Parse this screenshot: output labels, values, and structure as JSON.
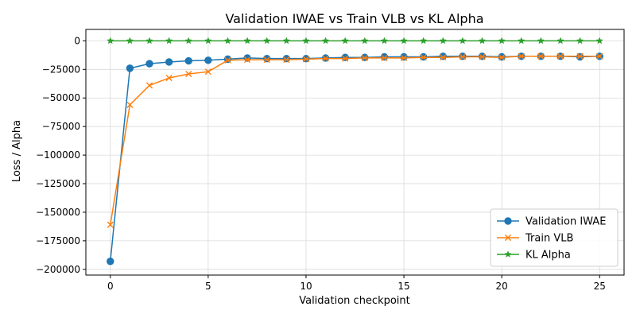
{
  "chart_data": {
    "type": "line",
    "title": "Validation IWAE vs Train VLB vs KL Alpha",
    "xlabel": "Validation checkpoint",
    "ylabel": "Loss / Alpha",
    "xlim": [
      -1.25,
      26.25
    ],
    "ylim": [
      -205000,
      10000
    ],
    "xticks": [
      0,
      5,
      10,
      15,
      20,
      25
    ],
    "yticks": [
      0,
      -25000,
      -50000,
      -75000,
      -100000,
      -125000,
      -150000,
      -175000,
      -200000
    ],
    "ytick_labels": [
      "0",
      "−25000",
      "−50000",
      "−75000",
      "−100000",
      "−125000",
      "−150000",
      "−175000",
      "−200000"
    ],
    "grid": true,
    "legend_position": "lower-right",
    "x": [
      0,
      1,
      2,
      3,
      4,
      5,
      6,
      7,
      8,
      9,
      10,
      11,
      12,
      13,
      14,
      15,
      16,
      17,
      18,
      19,
      20,
      21,
      22,
      23,
      24,
      25
    ],
    "series": [
      {
        "name": "Validation IWAE",
        "color": "#1f77b4",
        "marker": "circle",
        "values": [
          -193000,
          -24000,
          -20000,
          -18500,
          -17500,
          -17000,
          -16000,
          -15000,
          -15500,
          -15500,
          -15500,
          -15000,
          -14500,
          -14500,
          -14000,
          -14000,
          -14000,
          -13500,
          -13500,
          -13500,
          -14000,
          -13500,
          -13500,
          -13500,
          -14000,
          -13500
        ]
      },
      {
        "name": "Train VLB",
        "color": "#ff7f0e",
        "marker": "x",
        "values": [
          -161000,
          -56000,
          -39000,
          -32500,
          -29000,
          -27000,
          -17000,
          -16500,
          -16500,
          -16500,
          -16000,
          -15500,
          -15500,
          -15000,
          -15000,
          -15000,
          -14500,
          -14500,
          -14000,
          -14000,
          -14500,
          -13500,
          -13500,
          -13500,
          -13500,
          -13500
        ]
      },
      {
        "name": "KL Alpha",
        "color": "#2ca02c",
        "marker": "star",
        "values": [
          0,
          0,
          0,
          0,
          0,
          0,
          0,
          0,
          0,
          0,
          0,
          0,
          0,
          0,
          0,
          0,
          0,
          0,
          0,
          0,
          0,
          0,
          0,
          0,
          0,
          0
        ]
      }
    ]
  }
}
